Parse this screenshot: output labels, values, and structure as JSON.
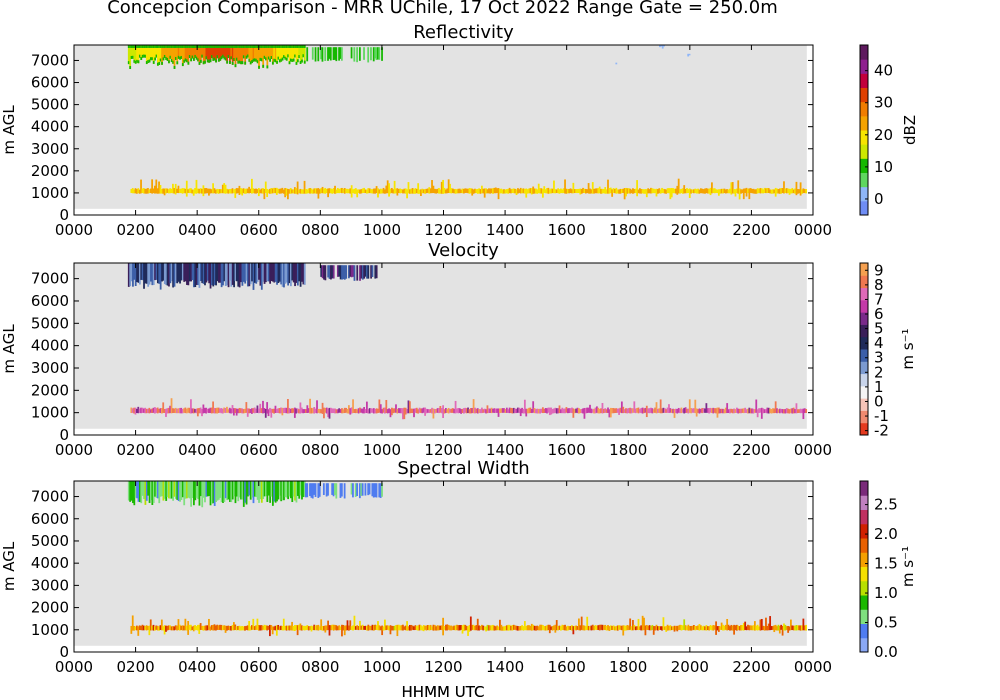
{
  "figure": {
    "suptitle": "Concepcion Comparison - MRR UChile, 17 Oct 2022 Range Gate = 250.0m",
    "xlabel": "HHMM UTC"
  },
  "colors": {
    "background": "#e3e3e3",
    "missing_strip": "#ffffff"
  },
  "chart_data": [
    {
      "type": "heatmap",
      "title": "Reflectivity",
      "xlabel": "",
      "ylabel": "m AGL",
      "x_ticks": [
        "0000",
        "0200",
        "0400",
        "0600",
        "0800",
        "1000",
        "1200",
        "1400",
        "1600",
        "1800",
        "2000",
        "2200",
        "0000"
      ],
      "y_ticks": [
        0,
        1000,
        2000,
        3000,
        4000,
        5000,
        6000,
        7000
      ],
      "xlim_hours": [
        0,
        24
      ],
      "ylim": [
        0,
        7700
      ],
      "colorbar": {
        "label": "dBZ",
        "ticks": [
          0,
          10,
          20,
          30,
          40
        ],
        "range": [
          -5,
          48
        ],
        "colors": [
          "#6f8df5",
          "#8fb6f8",
          "#5fd65f",
          "#15b800",
          "#cde800",
          "#f7e500",
          "#f5a300",
          "#f07d00",
          "#e04000",
          "#c2003c",
          "#8e1f8e",
          "#5e1a5e"
        ]
      },
      "features": [
        {
          "name": "upper cloud layer",
          "time_range": [
            "0145",
            "0730"
          ],
          "height_range": [
            6800,
            7700
          ],
          "value_range": [
            5,
            35
          ]
        },
        {
          "name": "upper cloud fragments",
          "time_range": [
            "0730",
            "1000"
          ],
          "height_range": [
            6900,
            7600
          ],
          "value_range": [
            5,
            12
          ]
        },
        {
          "name": "low layer",
          "time_range": [
            "0150",
            "2345"
          ],
          "height_range": [
            900,
            1400
          ],
          "value_range": [
            18,
            25
          ]
        },
        {
          "name": "isolated echo",
          "time_range": [
            "1735",
            "1735"
          ],
          "height_range": [
            6800,
            6900
          ],
          "value_range": [
            0,
            2
          ]
        },
        {
          "name": "isolated echo",
          "time_range": [
            "1900",
            "1910"
          ],
          "height_range": [
            7500,
            7700
          ],
          "value_range": [
            0,
            2
          ]
        },
        {
          "name": "isolated echo",
          "time_range": [
            "1955",
            "1960"
          ],
          "height_range": [
            7100,
            7300
          ],
          "value_range": [
            0,
            2
          ]
        }
      ]
    },
    {
      "type": "heatmap",
      "title": "Velocity",
      "xlabel": "",
      "ylabel": "m AGL",
      "x_ticks": [
        "0000",
        "0200",
        "0400",
        "0600",
        "0800",
        "1000",
        "1200",
        "1400",
        "1600",
        "1800",
        "2000",
        "2200",
        "0000"
      ],
      "y_ticks": [
        0,
        1000,
        2000,
        3000,
        4000,
        5000,
        6000,
        7000
      ],
      "xlim_hours": [
        0,
        24
      ],
      "ylim": [
        0,
        7700
      ],
      "colorbar": {
        "label": "m s⁻¹",
        "ticks": [
          -2,
          -1,
          0,
          1,
          2,
          3,
          4,
          5,
          6,
          7,
          8,
          9
        ],
        "range": [
          -2.3,
          9.5
        ],
        "colors": [
          "#e43a1f",
          "#f08a70",
          "#f6c4b8",
          "#f4f4f4",
          "#c8d4ea",
          "#7b9ad0",
          "#3c5fa8",
          "#1f2a5a",
          "#3a1f5a",
          "#7a2a8a",
          "#c43aa8",
          "#e06ab8",
          "#f07850",
          "#f5a050"
        ]
      },
      "features": [
        {
          "name": "upper cloud layer",
          "time_range": [
            "0145",
            "0730"
          ],
          "height_range": [
            6600,
            7700
          ],
          "value_range": [
            2,
            5
          ]
        },
        {
          "name": "upper cloud fragments",
          "time_range": [
            "0800",
            "0950"
          ],
          "height_range": [
            6900,
            7600
          ],
          "value_range": [
            3,
            6
          ]
        },
        {
          "name": "low layer",
          "time_range": [
            "0150",
            "2345"
          ],
          "height_range": [
            900,
            1400
          ],
          "value_range": [
            6,
            9
          ]
        }
      ]
    },
    {
      "type": "heatmap",
      "title": "Spectral Width",
      "xlabel": "HHMM UTC",
      "ylabel": "m AGL",
      "x_ticks": [
        "0000",
        "0200",
        "0400",
        "0600",
        "0800",
        "1000",
        "1200",
        "1400",
        "1600",
        "1800",
        "2000",
        "2200",
        "0000"
      ],
      "y_ticks": [
        0,
        1000,
        2000,
        3000,
        4000,
        5000,
        6000,
        7000
      ],
      "xlim_hours": [
        0,
        24
      ],
      "ylim": [
        0,
        7700
      ],
      "colorbar": {
        "label": "m s⁻¹",
        "ticks": [
          0.0,
          0.5,
          1.0,
          1.5,
          2.0,
          2.5
        ],
        "range": [
          0.0,
          2.9
        ],
        "colors": [
          "#8aa8f5",
          "#4f7cf0",
          "#7fe07f",
          "#1ab800",
          "#b8e000",
          "#f5e000",
          "#f5a000",
          "#e86000",
          "#d02000",
          "#c03060",
          "#c080c0",
          "#7a2a7a"
        ]
      },
      "features": [
        {
          "name": "upper cloud layer",
          "time_range": [
            "0145",
            "0730"
          ],
          "height_range": [
            6700,
            7700
          ],
          "value_range": [
            0.4,
            1.0
          ]
        },
        {
          "name": "upper cloud fragments",
          "time_range": [
            "0730",
            "1000"
          ],
          "height_range": [
            6900,
            7600
          ],
          "value_range": [
            0.3,
            0.5
          ]
        },
        {
          "name": "low layer",
          "time_range": [
            "0150",
            "2345"
          ],
          "height_range": [
            900,
            1400
          ],
          "value_range": [
            1.2,
            2.0
          ]
        }
      ]
    }
  ]
}
